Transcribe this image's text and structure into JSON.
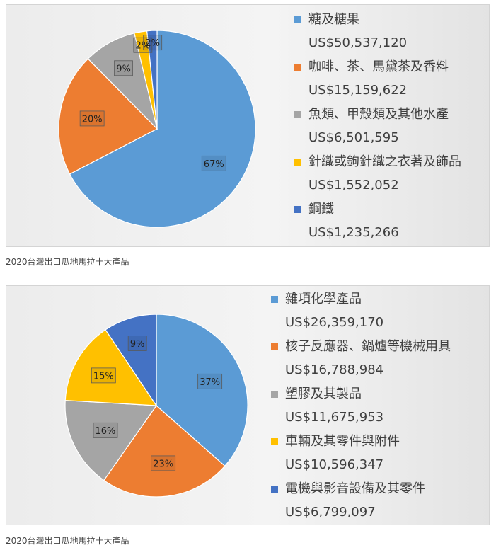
{
  "captions": [
    "2020台灣出口瓜地馬拉十大產品",
    "2020台灣出口瓜地馬拉十大產品"
  ],
  "chart_data": [
    {
      "type": "pie",
      "slices": [
        {
          "label": "糖及糖果",
          "value": "US$50,537,120",
          "amount": 50537120,
          "pct": "67%",
          "color": "#5b9bd5"
        },
        {
          "label": "咖啡、茶、馬黛茶及香料",
          "value": "US$15,159,622",
          "amount": 15159622,
          "pct": "20%",
          "color": "#ed7d31"
        },
        {
          "label": "魚類、甲殼類及其他水產",
          "value": "US$6,501,595",
          "amount": 6501595,
          "pct": "9%",
          "color": "#a5a5a5"
        },
        {
          "label": "針織或鉤針織之衣著及飾品",
          "value": "US$1,552,052",
          "amount": 1552052,
          "pct": "2%",
          "color": "#ffc000"
        },
        {
          "label": "鋼鐵",
          "value": "US$1,235,266",
          "amount": 1235266,
          "pct": "2%",
          "color": "#4472c4"
        }
      ],
      "start": "top",
      "direction": "clockwise",
      "legend": "right"
    },
    {
      "type": "pie",
      "slices": [
        {
          "label": "雜項化學產品",
          "value": "US$26,359,170",
          "amount": 26359170,
          "pct": "37%",
          "color": "#5b9bd5"
        },
        {
          "label": "核子反應器、鍋爐等機械用具",
          "value": "US$16,788,984",
          "amount": 16788984,
          "pct": "23%",
          "color": "#ed7d31"
        },
        {
          "label": "塑膠及其製品",
          "value": "US$11,675,953",
          "amount": 11675953,
          "pct": "16%",
          "color": "#a5a5a5"
        },
        {
          "label": "車輛及其零件與附件",
          "value": "US$10,596,347",
          "amount": 10596347,
          "pct": "15%",
          "color": "#ffc000"
        },
        {
          "label": "電機與影音設備及其零件",
          "value": "US$6,799,097",
          "amount": 6799097,
          "pct": "9%",
          "color": "#4472c4"
        }
      ],
      "start": "top",
      "direction": "clockwise",
      "legend": "right"
    }
  ]
}
